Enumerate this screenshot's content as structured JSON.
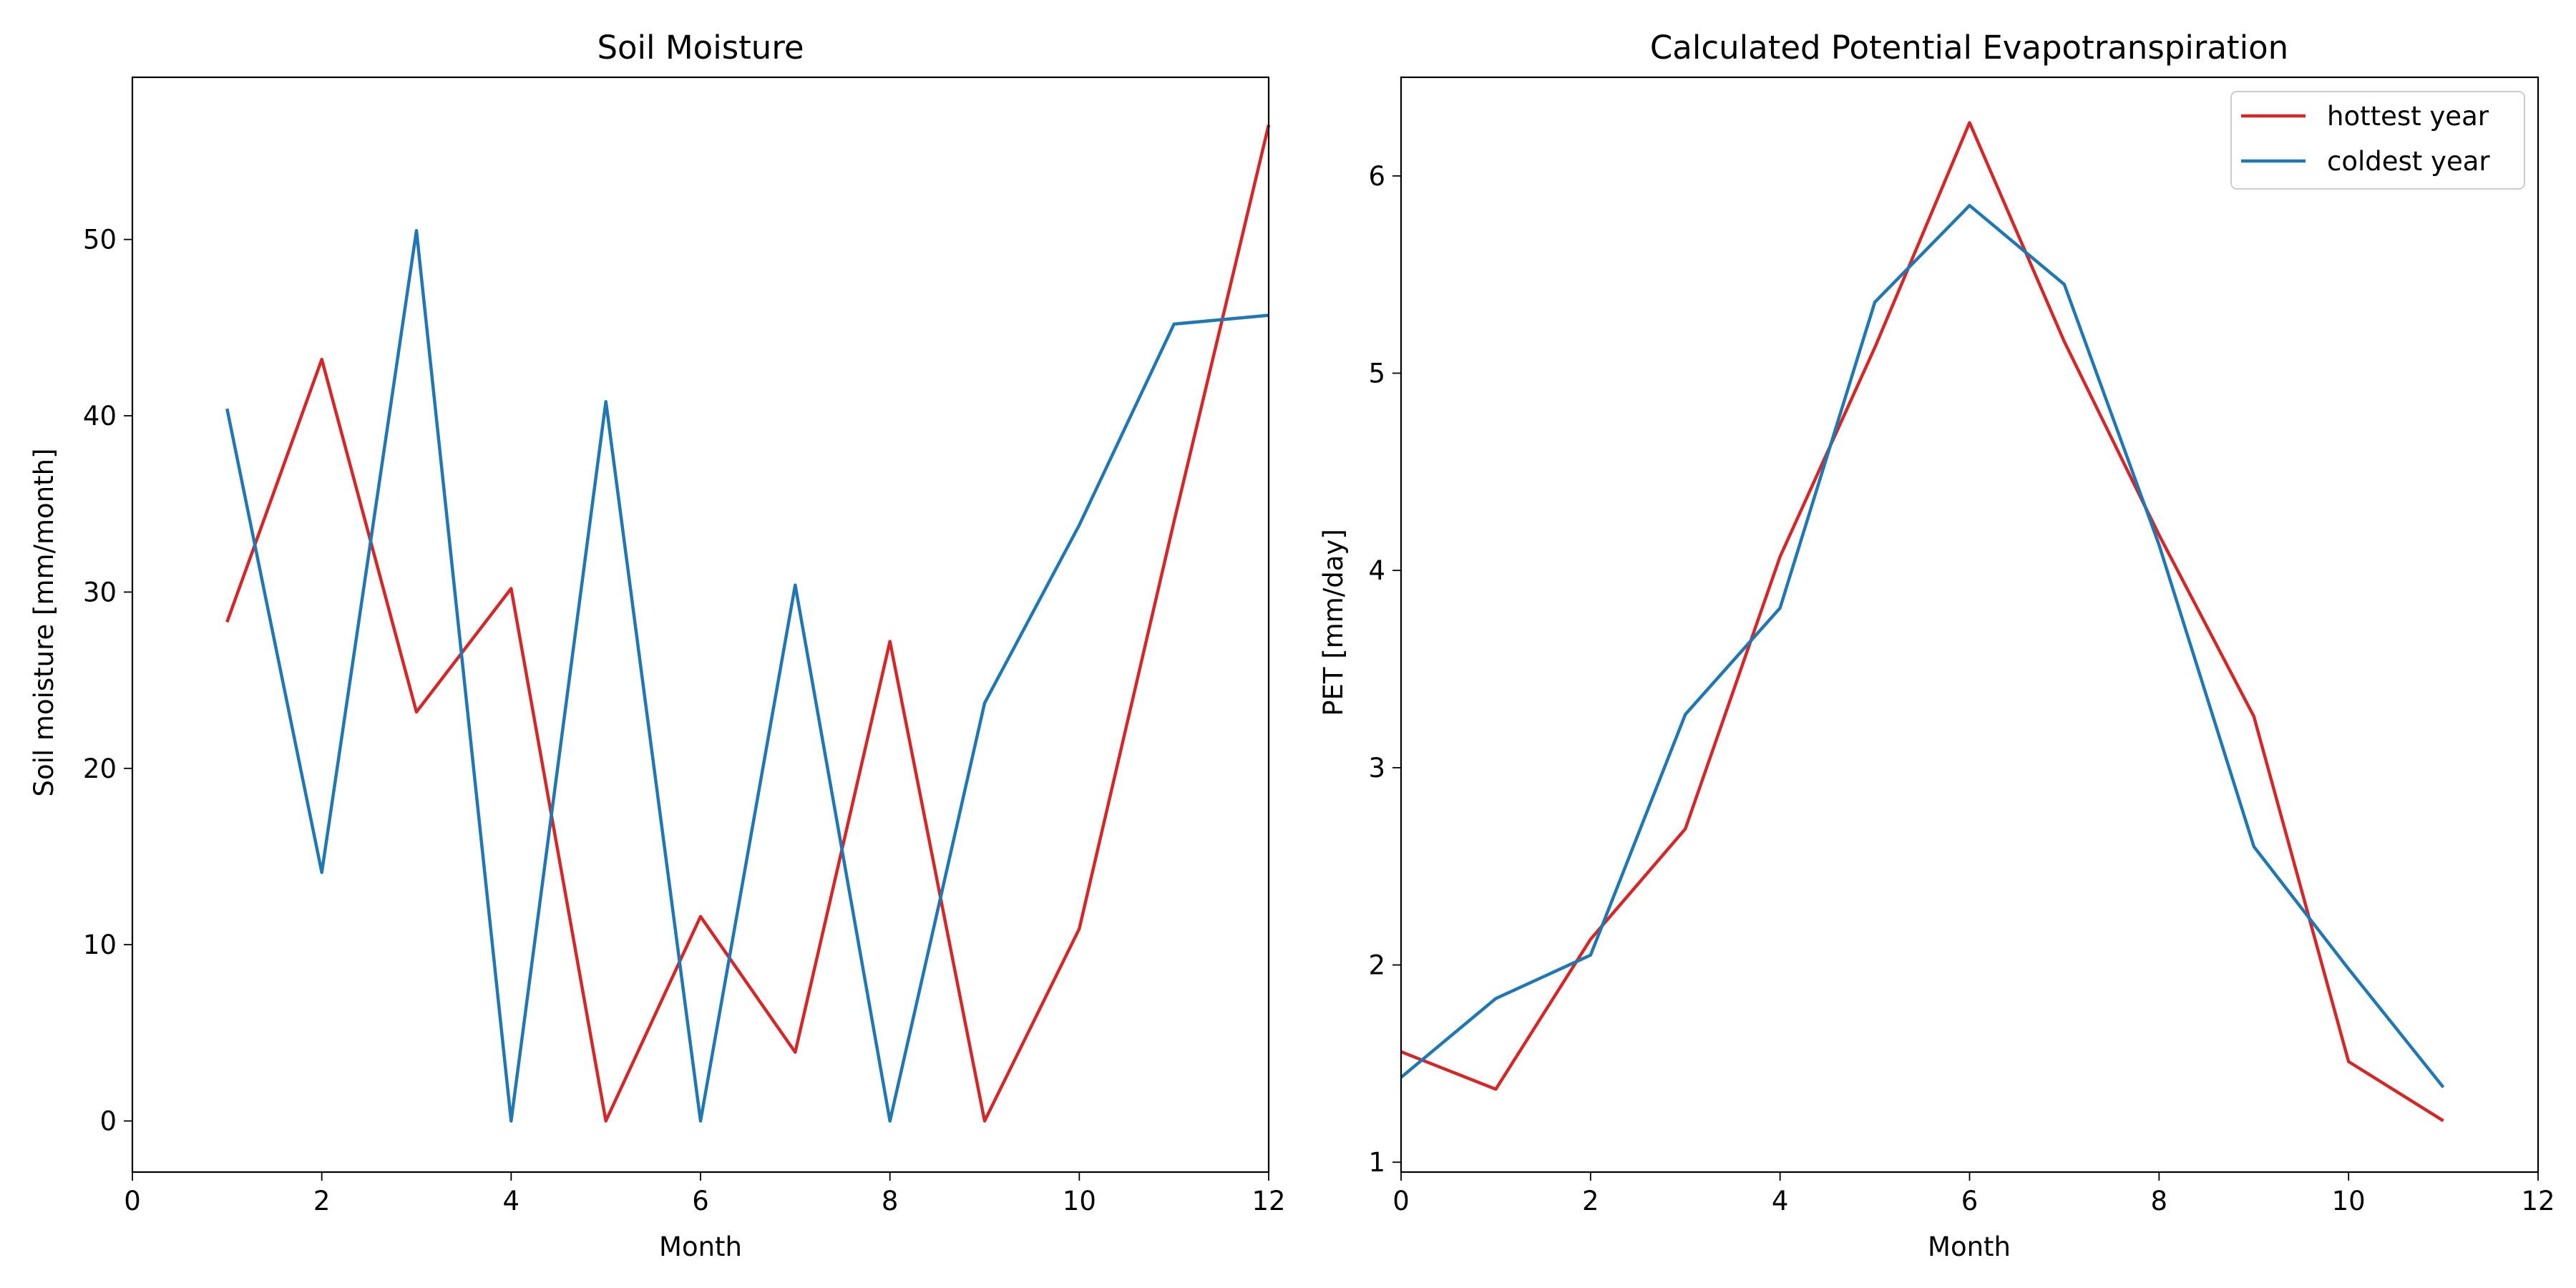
{
  "colors": {
    "hottest": "#d62728",
    "coldest": "#1f77b4"
  },
  "chart_data": [
    {
      "type": "line",
      "title": "Soil Moisture",
      "xlabel": "Month",
      "ylabel": "Soil moisture [mm/month]",
      "xlim": [
        0,
        12
      ],
      "ylim": [
        -2.9,
        59.2
      ],
      "xticks": [
        0,
        2,
        4,
        6,
        8,
        10,
        12
      ],
      "yticks": [
        0,
        10,
        20,
        30,
        40,
        50
      ],
      "grid": false,
      "legend": null,
      "series": [
        {
          "color_key": "hottest",
          "x": [
            1,
            2,
            3,
            4,
            5,
            6,
            7,
            8,
            9,
            10,
            11,
            12
          ],
          "y": [
            28.3,
            43.2,
            23.2,
            30.2,
            0,
            11.6,
            3.9,
            27.2,
            0,
            10.9,
            34.0,
            56.5
          ]
        },
        {
          "color_key": "coldest",
          "x": [
            1,
            2,
            3,
            4,
            5,
            6,
            7,
            8,
            9,
            10,
            11,
            12
          ],
          "y": [
            40.4,
            14.1,
            50.5,
            0,
            40.8,
            0,
            30.4,
            0,
            23.7,
            33.8,
            45.2,
            45.7
          ]
        }
      ]
    },
    {
      "type": "line",
      "title": "Calculated Potential Evapotranspiration",
      "xlabel": "Month",
      "ylabel": "PET [mm/day]",
      "xlim": [
        0,
        12
      ],
      "ylim": [
        0.95,
        6.5
      ],
      "xticks": [
        0,
        2,
        4,
        6,
        8,
        10,
        12
      ],
      "yticks": [
        1,
        2,
        3,
        4,
        5,
        6
      ],
      "grid": false,
      "legend": "top-right",
      "series": [
        {
          "name": "hottest year",
          "color_key": "hottest",
          "x": [
            0,
            1,
            2,
            3,
            4,
            5,
            6,
            7,
            8,
            9,
            10,
            11
          ],
          "y": [
            1.56,
            1.37,
            2.13,
            2.69,
            4.07,
            5.13,
            6.27,
            5.16,
            4.18,
            3.26,
            1.51,
            1.21
          ]
        },
        {
          "name": "coldest year",
          "color_key": "coldest",
          "x": [
            0,
            1,
            2,
            3,
            4,
            5,
            6,
            7,
            8,
            9,
            10,
            11
          ],
          "y": [
            1.43,
            1.83,
            2.05,
            3.27,
            3.81,
            5.36,
            5.85,
            5.45,
            4.13,
            2.6,
            1.98,
            1.38
          ]
        }
      ]
    }
  ]
}
